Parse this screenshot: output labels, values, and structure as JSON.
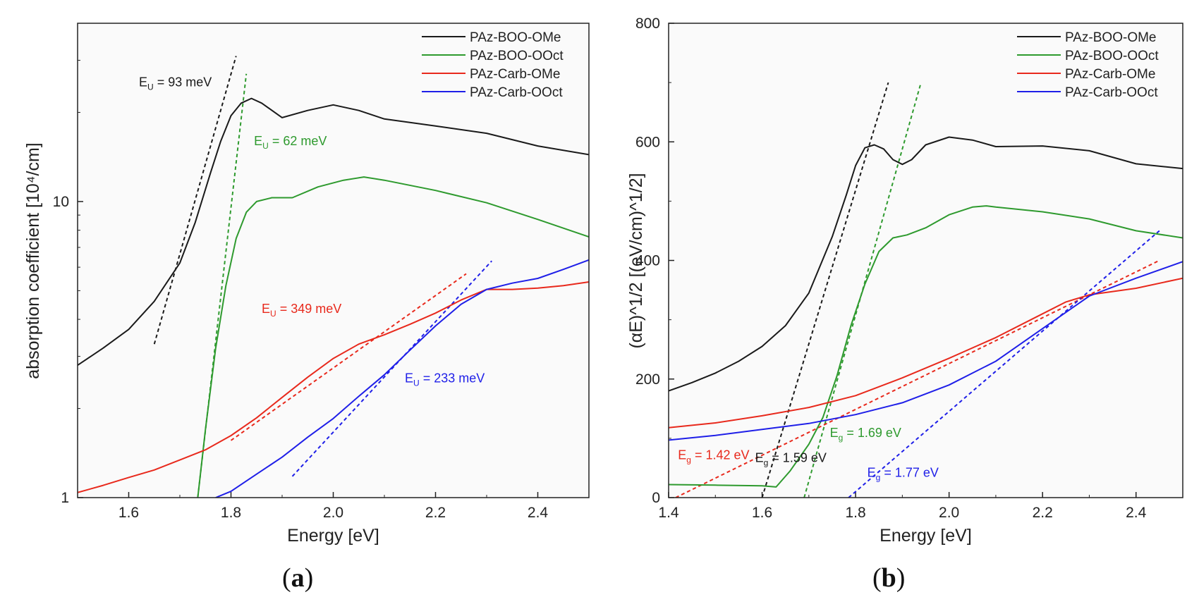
{
  "chart_data": [
    {
      "panel_label": "a",
      "type": "line",
      "yscale": "log",
      "xlabel": "Energy [eV]",
      "ylabel": "absorption coefficient [10⁴/cm]",
      "xlim": [
        1.5,
        2.5
      ],
      "ylim": [
        1,
        40
      ],
      "xticks": [
        1.6,
        1.8,
        2.0,
        2.2,
        2.4
      ],
      "xtick_labels": [
        "1.6",
        "1.8",
        "2.0",
        "2.2",
        "2.4"
      ],
      "yticks": [
        1,
        10
      ],
      "ytick_labels": [
        "1",
        "10"
      ],
      "legend": {
        "placement": "top-right"
      },
      "series": [
        {
          "name": "PAz-BOO-OMe",
          "color": "#1a1a1a",
          "x": [
            1.5,
            1.55,
            1.6,
            1.65,
            1.7,
            1.73,
            1.76,
            1.78,
            1.8,
            1.82,
            1.84,
            1.86,
            1.9,
            1.95,
            2.0,
            2.05,
            2.1,
            2.2,
            2.3,
            2.4,
            2.5
          ],
          "y": [
            2.8,
            3.2,
            3.7,
            4.6,
            6.2,
            8.5,
            12.5,
            16,
            19.5,
            21.5,
            22.3,
            21.5,
            19.2,
            20.3,
            21.2,
            20.3,
            19,
            18,
            17,
            15.4,
            14.4
          ]
        },
        {
          "name": "PAz-BOO-OOct",
          "color": "#2e9a2e",
          "x": [
            1.735,
            1.75,
            1.77,
            1.79,
            1.81,
            1.83,
            1.85,
            1.88,
            1.92,
            1.97,
            2.02,
            2.06,
            2.1,
            2.2,
            2.3,
            2.4,
            2.5
          ],
          "y": [
            1,
            1.7,
            3.2,
            5.2,
            7.5,
            9.2,
            10,
            10.3,
            10.3,
            11.2,
            11.8,
            12.1,
            11.8,
            10.9,
            9.9,
            8.7,
            7.6
          ]
        },
        {
          "name": "PAz-Carb-OMe",
          "color": "#e8291c",
          "x": [
            1.5,
            1.55,
            1.6,
            1.65,
            1.7,
            1.75,
            1.8,
            1.85,
            1.9,
            1.95,
            2.0,
            2.05,
            2.1,
            2.15,
            2.2,
            2.25,
            2.3,
            2.35,
            2.4,
            2.45,
            2.5
          ],
          "y": [
            1.04,
            1.1,
            1.17,
            1.24,
            1.34,
            1.45,
            1.62,
            1.86,
            2.18,
            2.55,
            2.95,
            3.3,
            3.55,
            3.85,
            4.2,
            4.65,
            5.05,
            5.05,
            5.1,
            5.2,
            5.35
          ]
        },
        {
          "name": "PAz-Carb-OOct",
          "color": "#1f1fe8",
          "x": [
            1.77,
            1.8,
            1.85,
            1.9,
            1.95,
            2.0,
            2.05,
            2.1,
            2.15,
            2.2,
            2.25,
            2.3,
            2.35,
            2.4,
            2.45,
            2.5
          ],
          "y": [
            1,
            1.05,
            1.2,
            1.37,
            1.6,
            1.85,
            2.2,
            2.6,
            3.15,
            3.8,
            4.5,
            5.05,
            5.3,
            5.5,
            5.9,
            6.35
          ]
        }
      ],
      "fit_lines": [
        {
          "color": "#1a1a1a",
          "x": [
            1.65,
            1.81
          ],
          "y": [
            3.3,
            31
          ]
        },
        {
          "color": "#2e9a2e",
          "x": [
            1.735,
            1.83
          ],
          "y": [
            1,
            27
          ]
        },
        {
          "color": "#e8291c",
          "x": [
            1.8,
            2.26
          ],
          "y": [
            1.56,
            5.7
          ]
        },
        {
          "color": "#1f1fe8",
          "x": [
            1.92,
            2.31
          ],
          "y": [
            1.18,
            6.3
          ]
        }
      ],
      "annotations": [
        {
          "base": "E",
          "sub": "U",
          "rest": " = 93 meV",
          "color": "#1a1a1a",
          "x": 1.62,
          "y": 24.5
        },
        {
          "base": "E",
          "sub": "U",
          "rest": " = 62 meV",
          "color": "#2e9a2e",
          "x": 1.845,
          "y": 15.5
        },
        {
          "base": "E",
          "sub": "U",
          "rest": " = 349 meV",
          "color": "#e8291c",
          "x": 1.86,
          "y": 4.2
        },
        {
          "base": "E",
          "sub": "U",
          "rest": " = 233 meV",
          "color": "#1f1fe8",
          "x": 2.14,
          "y": 2.45
        }
      ]
    },
    {
      "panel_label": "b",
      "type": "line",
      "yscale": "linear",
      "xlabel": "Energy [eV]",
      "ylabel": "(αE)^1/2 [(eV/cm)^1/2]",
      "xlim": [
        1.4,
        2.5
      ],
      "ylim": [
        0,
        800
      ],
      "xticks": [
        1.4,
        1.6,
        1.8,
        2.0,
        2.2,
        2.4
      ],
      "xtick_labels": [
        "1.4",
        "1.6",
        "1.8",
        "2.0",
        "2.2",
        "2.4"
      ],
      "yticks": [
        0,
        200,
        400,
        600,
        800
      ],
      "ytick_labels": [
        "0",
        "200",
        "400",
        "600",
        "800"
      ],
      "legend": {
        "placement": "top-right"
      },
      "series": [
        {
          "name": "PAz-BOO-OMe",
          "color": "#1a1a1a",
          "x": [
            1.4,
            1.45,
            1.5,
            1.55,
            1.6,
            1.65,
            1.7,
            1.75,
            1.78,
            1.8,
            1.82,
            1.84,
            1.86,
            1.88,
            1.9,
            1.92,
            1.95,
            2.0,
            2.05,
            2.1,
            2.2,
            2.3,
            2.4,
            2.5
          ],
          "y": [
            180,
            194,
            210,
            230,
            255,
            290,
            345,
            440,
            510,
            560,
            590,
            595,
            588,
            570,
            562,
            570,
            595,
            608,
            603,
            592,
            593,
            585,
            563,
            555
          ]
        },
        {
          "name": "PAz-BOO-OOct",
          "color": "#2e9a2e",
          "x": [
            1.4,
            1.5,
            1.6,
            1.63,
            1.66,
            1.7,
            1.73,
            1.76,
            1.79,
            1.82,
            1.85,
            1.88,
            1.91,
            1.95,
            2.0,
            2.05,
            2.08,
            2.1,
            2.2,
            2.3,
            2.4,
            2.5
          ],
          "y": [
            22,
            21,
            20,
            18,
            45,
            90,
            135,
            205,
            290,
            360,
            415,
            438,
            443,
            455,
            477,
            490,
            492,
            490,
            482,
            470,
            450,
            438
          ]
        },
        {
          "name": "PAz-Carb-OMe",
          "color": "#e8291c",
          "x": [
            1.4,
            1.5,
            1.6,
            1.7,
            1.8,
            1.9,
            2.0,
            2.1,
            2.2,
            2.25,
            2.3,
            2.4,
            2.5
          ],
          "y": [
            118,
            126,
            138,
            152,
            172,
            202,
            235,
            270,
            310,
            330,
            342,
            353,
            370
          ]
        },
        {
          "name": "PAz-Carb-OOct",
          "color": "#1f1fe8",
          "x": [
            1.4,
            1.5,
            1.6,
            1.7,
            1.8,
            1.9,
            2.0,
            2.1,
            2.2,
            2.3,
            2.4,
            2.5
          ],
          "y": [
            97,
            105,
            115,
            125,
            140,
            160,
            190,
            230,
            285,
            340,
            370,
            398
          ]
        }
      ],
      "fit_lines": [
        {
          "color": "#1a1a1a",
          "x": [
            1.6,
            1.87
          ],
          "y": [
            0,
            700
          ]
        },
        {
          "color": "#2e9a2e",
          "x": [
            1.69,
            1.94
          ],
          "y": [
            0,
            700
          ]
        },
        {
          "color": "#e8291c",
          "x": [
            1.415,
            2.45
          ],
          "y": [
            0,
            400
          ]
        },
        {
          "color": "#1f1fe8",
          "x": [
            1.785,
            2.45
          ],
          "y": [
            0,
            450
          ]
        }
      ],
      "annotations": [
        {
          "base": "E",
          "sub": "g",
          "rest": " = 1.42 eV",
          "color": "#e8291c",
          "x": 1.42,
          "y": 65
        },
        {
          "base": "E",
          "sub": "g",
          "rest": " = 1.59 eV",
          "color": "#1a1a1a",
          "x": 1.585,
          "y": 60
        },
        {
          "base": "E",
          "sub": "g",
          "rest": " = 1.69 eV",
          "color": "#2e9a2e",
          "x": 1.745,
          "y": 102
        },
        {
          "base": "E",
          "sub": "g",
          "rest": " = 1.77 eV",
          "color": "#1f1fe8",
          "x": 1.825,
          "y": 35
        }
      ]
    }
  ]
}
